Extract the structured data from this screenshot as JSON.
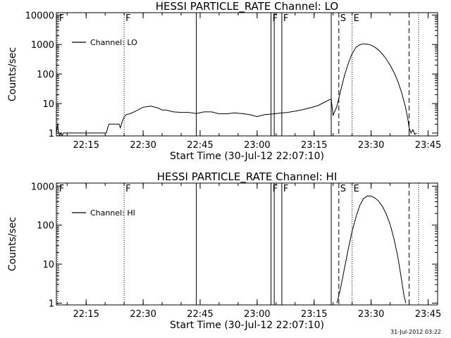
{
  "footer_timestamp": "31-Jul-2012 03:22",
  "chart_data": [
    {
      "type": "line",
      "title": "HESSI PARTICLE_RATE Channel: LO",
      "xlabel": "Start Time (30-Jul-12 22:07:10)",
      "ylabel": "Counts/sec",
      "yscale": "log",
      "xlim": [
        "22:07:10",
        "23:47:30"
      ],
      "ylim": [
        0.8,
        12000
      ],
      "xticks": [
        "22:15",
        "22:30",
        "22:45",
        "23:00",
        "23:15",
        "23:30",
        "23:45"
      ],
      "yticks": [
        1,
        10,
        100,
        1000,
        10000
      ],
      "ytick_labels": [
        "1",
        "10",
        "100",
        "1000",
        "10000"
      ],
      "legend": {
        "position": "top-left",
        "entries": [
          "Channel: LO"
        ]
      },
      "markers": [
        {
          "label": "F",
          "time": "22:07:30",
          "style": "dotted"
        },
        {
          "label": "F",
          "time": "22:25:00",
          "style": "dotted"
        },
        {
          "label": "",
          "time": "22:44:00",
          "style": "solid"
        },
        {
          "label": "F",
          "time": "23:03:40",
          "style": "solid"
        },
        {
          "label": "",
          "time": "23:04:30",
          "style": "solid"
        },
        {
          "label": "F",
          "time": "23:06:30",
          "style": "solid"
        },
        {
          "label": "",
          "time": "23:19:30",
          "style": "solid"
        },
        {
          "label": "S",
          "time": "23:21:30",
          "style": "dashed"
        },
        {
          "label": "E",
          "time": "23:25:00",
          "style": "dotted"
        },
        {
          "label": "",
          "time": "23:40:00",
          "style": "dashed"
        },
        {
          "label": "",
          "time": "23:42:30",
          "style": "dotted"
        }
      ],
      "series": [
        {
          "name": "Channel: LO",
          "x": [
            "22:07:10",
            "22:07:30",
            "22:07:45",
            "22:08:00",
            "22:08:20",
            "22:08:40",
            "22:09:00",
            "22:20:20",
            "22:20:40",
            "22:21:00",
            "22:22:00",
            "22:23:00",
            "22:23:40",
            "22:24:00",
            "22:24:30",
            "22:25:00",
            "22:25:30",
            "22:26:30",
            "22:28:00",
            "22:30:00",
            "22:32:00",
            "22:34:00",
            "22:35:00",
            "22:36:00",
            "22:38:00",
            "22:40:00",
            "22:42:00",
            "22:44:00",
            "22:46:00",
            "22:48:00",
            "22:50:00",
            "22:52:00",
            "22:54:00",
            "22:56:00",
            "22:58:00",
            "23:00:00",
            "23:02:00",
            "23:03:40",
            "23:05:00",
            "23:06:30",
            "23:08:00",
            "23:10:00",
            "23:12:00",
            "23:14:00",
            "23:16:00",
            "23:18:00",
            "23:19:00",
            "23:19:30",
            "23:20:00",
            "23:21:00",
            "23:22:00",
            "23:23:00",
            "23:24:00",
            "23:25:00",
            "23:26:00",
            "23:27:00",
            "23:28:00",
            "23:29:00",
            "23:30:00",
            "23:31:00",
            "23:32:00",
            "23:33:00",
            "23:34:00",
            "23:35:00",
            "23:36:00",
            "23:37:00",
            "23:38:00",
            "23:39:00",
            "23:39:40",
            "23:40:00",
            "23:40:30",
            "23:41:00",
            "23:41:30",
            "23:42:00"
          ],
          "y": [
            1,
            2,
            1,
            0.8,
            1,
            0.8,
            1,
            1,
            1.5,
            2,
            2,
            2,
            2,
            1.5,
            2.5,
            3.5,
            4.2,
            4.5,
            5.5,
            7.5,
            8.2,
            7,
            6,
            6,
            5.2,
            5,
            5,
            4.6,
            5.2,
            5.2,
            4.5,
            4.5,
            4.8,
            4.6,
            4.2,
            3.6,
            4.2,
            4.4,
            4.6,
            4.8,
            5,
            5.5,
            6.2,
            7.2,
            8.5,
            11.5,
            13.5,
            14,
            4,
            8,
            28,
            90,
            230,
            490,
            800,
            980,
            1060,
            1030,
            950,
            810,
            640,
            470,
            320,
            200,
            115,
            58,
            24,
            8,
            3,
            1.5,
            1,
            1.3,
            0.9,
            1
          ]
        }
      ]
    },
    {
      "type": "line",
      "title": "HESSI PARTICLE_RATE Channel: HI",
      "xlabel": "Start Time (30-Jul-12 22:07:10)",
      "ylabel": "Counts/sec",
      "yscale": "log",
      "xlim": [
        "22:07:10",
        "23:47:30"
      ],
      "ylim": [
        0.9,
        1200
      ],
      "xticks": [
        "22:15",
        "22:30",
        "22:45",
        "23:00",
        "23:15",
        "23:30",
        "23:45"
      ],
      "yticks": [
        1,
        10,
        100,
        1000
      ],
      "ytick_labels": [
        "1",
        "10",
        "100",
        "1000"
      ],
      "legend": {
        "position": "top-left",
        "entries": [
          "Channel: HI"
        ]
      },
      "markers": [
        {
          "label": "F",
          "time": "22:07:30",
          "style": "dotted"
        },
        {
          "label": "F",
          "time": "22:25:00",
          "style": "dotted"
        },
        {
          "label": "",
          "time": "22:44:00",
          "style": "solid"
        },
        {
          "label": "F",
          "time": "23:03:40",
          "style": "solid"
        },
        {
          "label": "",
          "time": "23:04:30",
          "style": "solid"
        },
        {
          "label": "F",
          "time": "23:06:30",
          "style": "solid"
        },
        {
          "label": "",
          "time": "23:19:30",
          "style": "solid"
        },
        {
          "label": "S",
          "time": "23:21:30",
          "style": "dashed"
        },
        {
          "label": "E",
          "time": "23:25:00",
          "style": "dotted"
        },
        {
          "label": "",
          "time": "23:40:00",
          "style": "dashed"
        },
        {
          "label": "",
          "time": "23:42:30",
          "style": "dotted"
        }
      ],
      "series": [
        {
          "name": "Channel: HI",
          "x": [
            "23:21:00",
            "23:22:00",
            "23:23:00",
            "23:24:00",
            "23:25:00",
            "23:26:00",
            "23:27:00",
            "23:28:00",
            "23:29:00",
            "23:30:00",
            "23:31:00",
            "23:32:00",
            "23:33:00",
            "23:34:00",
            "23:35:00",
            "23:36:00",
            "23:37:00",
            "23:38:00",
            "23:38:40",
            "23:39:10"
          ],
          "y": [
            1,
            2.5,
            8,
            25,
            70,
            160,
            320,
            480,
            560,
            555,
            500,
            410,
            300,
            190,
            105,
            45,
            16,
            4,
            1.5,
            1
          ]
        }
      ]
    }
  ]
}
